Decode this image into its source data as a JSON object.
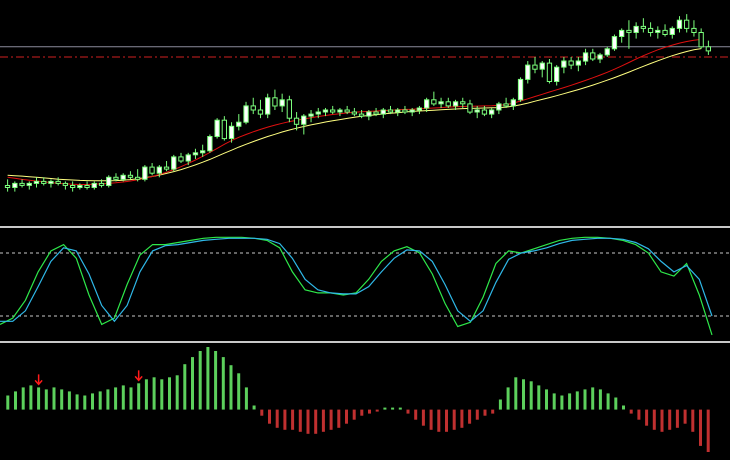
{
  "colors": {
    "background": "#000000",
    "separator": "#c8c8c8",
    "candle_up_body": "#ffffff",
    "candle_wick": "#7cff7c",
    "candle_down_body": "#000000",
    "ma_fast": "#e01010",
    "ma_slow": "#ffff80",
    "hline_gray": "#8c8c9c",
    "hline_red": "#d02020",
    "stoch_main": "#2ee84a",
    "stoch_signal": "#2fb8e8",
    "stoch_level": "#c8c8c8",
    "hist_pos": "#5cd05c",
    "hist_neg": "#c03030",
    "arrow": "#ff1a1a"
  },
  "chart_data": [
    {
      "type": "candlestick",
      "panel": "price",
      "title": "",
      "ylim": [
        0,
        100
      ],
      "reference_lines": [
        {
          "value": 81,
          "style": "solid",
          "color_key": "hline_gray"
        },
        {
          "value": 76,
          "style": "dash-dot",
          "color_key": "hline_red"
        }
      ],
      "candles": [
        {
          "o": 13,
          "h": 16,
          "l": 10,
          "c": 12
        },
        {
          "o": 12,
          "h": 15,
          "l": 10,
          "c": 14
        },
        {
          "o": 14,
          "h": 16,
          "l": 12,
          "c": 13
        },
        {
          "o": 13,
          "h": 15,
          "l": 11,
          "c": 14
        },
        {
          "o": 14,
          "h": 17,
          "l": 12,
          "c": 15
        },
        {
          "o": 15,
          "h": 17,
          "l": 13,
          "c": 14
        },
        {
          "o": 14,
          "h": 16,
          "l": 12,
          "c": 15
        },
        {
          "o": 15,
          "h": 17,
          "l": 13,
          "c": 14
        },
        {
          "o": 14,
          "h": 15,
          "l": 11,
          "c": 13
        },
        {
          "o": 13,
          "h": 15,
          "l": 10,
          "c": 12
        },
        {
          "o": 12,
          "h": 14,
          "l": 11,
          "c": 13
        },
        {
          "o": 13,
          "h": 15,
          "l": 11,
          "c": 12
        },
        {
          "o": 12,
          "h": 15,
          "l": 11,
          "c": 14
        },
        {
          "o": 14,
          "h": 16,
          "l": 12,
          "c": 13
        },
        {
          "o": 13,
          "h": 18,
          "l": 12,
          "c": 17
        },
        {
          "o": 17,
          "h": 19,
          "l": 15,
          "c": 16
        },
        {
          "o": 16,
          "h": 19,
          "l": 15,
          "c": 18
        },
        {
          "o": 18,
          "h": 20,
          "l": 16,
          "c": 17
        },
        {
          "o": 17,
          "h": 21,
          "l": 15,
          "c": 16
        },
        {
          "o": 16,
          "h": 23,
          "l": 15,
          "c": 22
        },
        {
          "o": 22,
          "h": 24,
          "l": 18,
          "c": 19
        },
        {
          "o": 19,
          "h": 23,
          "l": 17,
          "c": 22
        },
        {
          "o": 22,
          "h": 25,
          "l": 20,
          "c": 21
        },
        {
          "o": 21,
          "h": 28,
          "l": 20,
          "c": 27
        },
        {
          "o": 27,
          "h": 29,
          "l": 24,
          "c": 25
        },
        {
          "o": 25,
          "h": 29,
          "l": 23,
          "c": 28
        },
        {
          "o": 28,
          "h": 31,
          "l": 26,
          "c": 29
        },
        {
          "o": 29,
          "h": 33,
          "l": 27,
          "c": 30
        },
        {
          "o": 30,
          "h": 38,
          "l": 29,
          "c": 37
        },
        {
          "o": 37,
          "h": 46,
          "l": 36,
          "c": 45
        },
        {
          "o": 45,
          "h": 47,
          "l": 35,
          "c": 36
        },
        {
          "o": 36,
          "h": 44,
          "l": 34,
          "c": 42
        },
        {
          "o": 42,
          "h": 48,
          "l": 40,
          "c": 44
        },
        {
          "o": 44,
          "h": 54,
          "l": 43,
          "c": 52
        },
        {
          "o": 52,
          "h": 56,
          "l": 48,
          "c": 50
        },
        {
          "o": 50,
          "h": 55,
          "l": 46,
          "c": 48
        },
        {
          "o": 48,
          "h": 58,
          "l": 46,
          "c": 56
        },
        {
          "o": 56,
          "h": 60,
          "l": 50,
          "c": 52
        },
        {
          "o": 52,
          "h": 58,
          "l": 49,
          "c": 55
        },
        {
          "o": 55,
          "h": 57,
          "l": 44,
          "c": 46
        },
        {
          "o": 46,
          "h": 49,
          "l": 40,
          "c": 43
        },
        {
          "o": 43,
          "h": 48,
          "l": 38,
          "c": 47
        },
        {
          "o": 47,
          "h": 50,
          "l": 44,
          "c": 48
        },
        {
          "o": 48,
          "h": 51,
          "l": 46,
          "c": 49
        },
        {
          "o": 49,
          "h": 51,
          "l": 47,
          "c": 50
        },
        {
          "o": 50,
          "h": 52,
          "l": 48,
          "c": 49
        },
        {
          "o": 49,
          "h": 51,
          "l": 47,
          "c": 50
        },
        {
          "o": 50,
          "h": 52,
          "l": 48,
          "c": 49
        },
        {
          "o": 49,
          "h": 51,
          "l": 47,
          "c": 48
        },
        {
          "o": 48,
          "h": 50,
          "l": 46,
          "c": 47
        },
        {
          "o": 47,
          "h": 50,
          "l": 45,
          "c": 49
        },
        {
          "o": 49,
          "h": 51,
          "l": 47,
          "c": 48
        },
        {
          "o": 48,
          "h": 51,
          "l": 46,
          "c": 50
        },
        {
          "o": 50,
          "h": 52,
          "l": 48,
          "c": 49
        },
        {
          "o": 49,
          "h": 51,
          "l": 47,
          "c": 50
        },
        {
          "o": 50,
          "h": 52,
          "l": 48,
          "c": 49
        },
        {
          "o": 49,
          "h": 51,
          "l": 47,
          "c": 50
        },
        {
          "o": 50,
          "h": 52,
          "l": 48,
          "c": 51
        },
        {
          "o": 51,
          "h": 56,
          "l": 49,
          "c": 55
        },
        {
          "o": 55,
          "h": 59,
          "l": 52,
          "c": 53
        },
        {
          "o": 53,
          "h": 56,
          "l": 51,
          "c": 54
        },
        {
          "o": 54,
          "h": 56,
          "l": 51,
          "c": 52
        },
        {
          "o": 52,
          "h": 55,
          "l": 50,
          "c": 54
        },
        {
          "o": 54,
          "h": 56,
          "l": 51,
          "c": 53
        },
        {
          "o": 53,
          "h": 55,
          "l": 48,
          "c": 49
        },
        {
          "o": 49,
          "h": 52,
          "l": 46,
          "c": 50
        },
        {
          "o": 50,
          "h": 52,
          "l": 47,
          "c": 48
        },
        {
          "o": 48,
          "h": 51,
          "l": 46,
          "c": 50
        },
        {
          "o": 50,
          "h": 54,
          "l": 48,
          "c": 53
        },
        {
          "o": 53,
          "h": 56,
          "l": 51,
          "c": 52
        },
        {
          "o": 52,
          "h": 56,
          "l": 50,
          "c": 55
        },
        {
          "o": 55,
          "h": 66,
          "l": 54,
          "c": 65
        },
        {
          "o": 65,
          "h": 74,
          "l": 63,
          "c": 72
        },
        {
          "o": 72,
          "h": 76,
          "l": 68,
          "c": 70
        },
        {
          "o": 70,
          "h": 74,
          "l": 66,
          "c": 73
        },
        {
          "o": 73,
          "h": 75,
          "l": 63,
          "c": 64
        },
        {
          "o": 64,
          "h": 72,
          "l": 62,
          "c": 71
        },
        {
          "o": 71,
          "h": 76,
          "l": 68,
          "c": 74
        },
        {
          "o": 74,
          "h": 76,
          "l": 70,
          "c": 72
        },
        {
          "o": 72,
          "h": 76,
          "l": 69,
          "c": 74
        },
        {
          "o": 74,
          "h": 80,
          "l": 72,
          "c": 78
        },
        {
          "o": 78,
          "h": 80,
          "l": 74,
          "c": 75
        },
        {
          "o": 75,
          "h": 78,
          "l": 73,
          "c": 77
        },
        {
          "o": 77,
          "h": 81,
          "l": 76,
          "c": 80
        },
        {
          "o": 80,
          "h": 87,
          "l": 79,
          "c": 86
        },
        {
          "o": 86,
          "h": 90,
          "l": 83,
          "c": 89
        },
        {
          "o": 89,
          "h": 94,
          "l": 80,
          "c": 88
        },
        {
          "o": 88,
          "h": 93,
          "l": 85,
          "c": 91
        },
        {
          "o": 91,
          "h": 95,
          "l": 88,
          "c": 90
        },
        {
          "o": 90,
          "h": 93,
          "l": 86,
          "c": 88
        },
        {
          "o": 88,
          "h": 91,
          "l": 85,
          "c": 89
        },
        {
          "o": 89,
          "h": 92,
          "l": 86,
          "c": 87
        },
        {
          "o": 87,
          "h": 91,
          "l": 85,
          "c": 90
        },
        {
          "o": 90,
          "h": 96,
          "l": 88,
          "c": 94
        },
        {
          "o": 94,
          "h": 97,
          "l": 88,
          "c": 90
        },
        {
          "o": 90,
          "h": 94,
          "l": 86,
          "c": 88
        },
        {
          "o": 88,
          "h": 90,
          "l": 80,
          "c": 81
        },
        {
          "o": 81,
          "h": 84,
          "l": 77,
          "c": 79
        }
      ],
      "ma_fast": [
        17,
        16.5,
        16,
        15.6,
        15.2,
        14.8,
        14.4,
        14,
        13.8,
        13.6,
        13.5,
        13.5,
        13.6,
        13.8,
        14,
        14.3,
        14.7,
        15.2,
        15.8,
        16.5,
        17.4,
        18.4,
        19.5,
        20.8,
        22.2,
        23.8,
        25.5,
        27.3,
        29.2,
        31.2,
        33.2,
        35,
        36.6,
        38,
        39.3,
        40.5,
        41.6,
        42.6,
        43.5,
        44.3,
        45,
        45.6,
        46.2,
        46.8,
        47.3,
        47.8,
        48.2,
        48.6,
        48.9,
        49.1,
        49.3,
        49.5,
        49.7,
        49.9,
        50.1,
        50.3,
        50.4,
        50.6,
        50.8,
        51,
        51.2,
        51.4,
        51.6,
        51.7,
        51.8,
        51.9,
        52,
        52.1,
        52.3,
        52.6,
        53.4,
        54.4,
        55.5,
        56.6,
        57.7,
        58.8,
        59.9,
        61,
        62.1,
        63.3,
        64.5,
        65.8,
        67.1,
        68.5,
        70,
        71.6,
        73.3,
        75,
        76.6,
        78.1,
        79.5,
        80.7,
        81.8,
        82.8,
        83.6,
        84.2,
        84.6
      ],
      "ma_slow": [
        18,
        17.8,
        17.6,
        17.3,
        17,
        16.7,
        16.4,
        16.1,
        15.9,
        15.7,
        15.5,
        15.4,
        15.3,
        15.3,
        15.3,
        15.4,
        15.6,
        15.9,
        16.3,
        16.8,
        17.4,
        18.1,
        18.9,
        19.8,
        20.8,
        21.9,
        23.1,
        24.4,
        25.8,
        27.3,
        28.8,
        30.3,
        31.8,
        33.2,
        34.5,
        35.8,
        37,
        38.1,
        39.2,
        40.2,
        41.1,
        41.9,
        42.7,
        43.4,
        44.1,
        44.7,
        45.3,
        45.9,
        46.4,
        46.9,
        47.3,
        47.7,
        48.1,
        48.4,
        48.7,
        49,
        49.3,
        49.5,
        49.7,
        49.9,
        50.1,
        50.3,
        50.5,
        50.7,
        50.8,
        50.9,
        51,
        51.1,
        51.2,
        51.4,
        51.9,
        52.6,
        53.4,
        54.3,
        55.2,
        56.1,
        57,
        58,
        59,
        60,
        61.1,
        62.2,
        63.4,
        64.6,
        65.9,
        67.2,
        68.6,
        70,
        71.4,
        72.8,
        74.1,
        75.4,
        76.6,
        77.7,
        78.7,
        79.5,
        80.1
      ]
    },
    {
      "type": "line",
      "panel": "oscillator",
      "title": "",
      "ylim": [
        0,
        100
      ],
      "levels": [
        80,
        20
      ],
      "series": [
        {
          "role": "main",
          "values": [
            12,
            18,
            35,
            62,
            82,
            88,
            75,
            40,
            12,
            18,
            50,
            78,
            88,
            88,
            90,
            92,
            94,
            95,
            95,
            95,
            94,
            92,
            85,
            62,
            45,
            42,
            42,
            40,
            42,
            55,
            72,
            82,
            86,
            80,
            60,
            32,
            10,
            14,
            38,
            70,
            82,
            80,
            84,
            88,
            92,
            94,
            95,
            95,
            94,
            92,
            88,
            80,
            62,
            58,
            70,
            40,
            2
          ]
        },
        {
          "role": "signal",
          "values": [
            15,
            15,
            25,
            48,
            72,
            85,
            82,
            60,
            30,
            15,
            30,
            62,
            82,
            87,
            88,
            90,
            92,
            93,
            94,
            94,
            94,
            93,
            89,
            75,
            55,
            45,
            42,
            41,
            41,
            48,
            62,
            75,
            83,
            82,
            72,
            50,
            25,
            15,
            25,
            52,
            74,
            80,
            82,
            85,
            89,
            92,
            93,
            94,
            94,
            93,
            90,
            84,
            72,
            62,
            68,
            55,
            20
          ]
        }
      ]
    },
    {
      "type": "bar",
      "panel": "histogram",
      "title": "",
      "ylim": [
        -45,
        63
      ],
      "values": [
        14,
        18,
        22,
        24,
        22,
        20,
        22,
        20,
        18,
        15,
        14,
        16,
        18,
        20,
        22,
        24,
        22,
        26,
        30,
        32,
        30,
        32,
        34,
        45,
        52,
        58,
        62,
        58,
        52,
        44,
        36,
        22,
        4,
        -6,
        -14,
        -18,
        -20,
        -20,
        -22,
        -24,
        -24,
        -22,
        -20,
        -18,
        -14,
        -10,
        -6,
        -4,
        -2,
        2,
        2,
        2,
        -4,
        -10,
        -16,
        -20,
        -22,
        -22,
        -20,
        -18,
        -14,
        -10,
        -6,
        -4,
        10,
        22,
        32,
        30,
        28,
        24,
        20,
        16,
        14,
        16,
        18,
        20,
        22,
        20,
        16,
        12,
        4,
        -4,
        -10,
        -16,
        -20,
        -22,
        -20,
        -18,
        -14,
        -22,
        -36,
        -42
      ],
      "arrows_at_index": [
        4,
        17
      ]
    }
  ]
}
